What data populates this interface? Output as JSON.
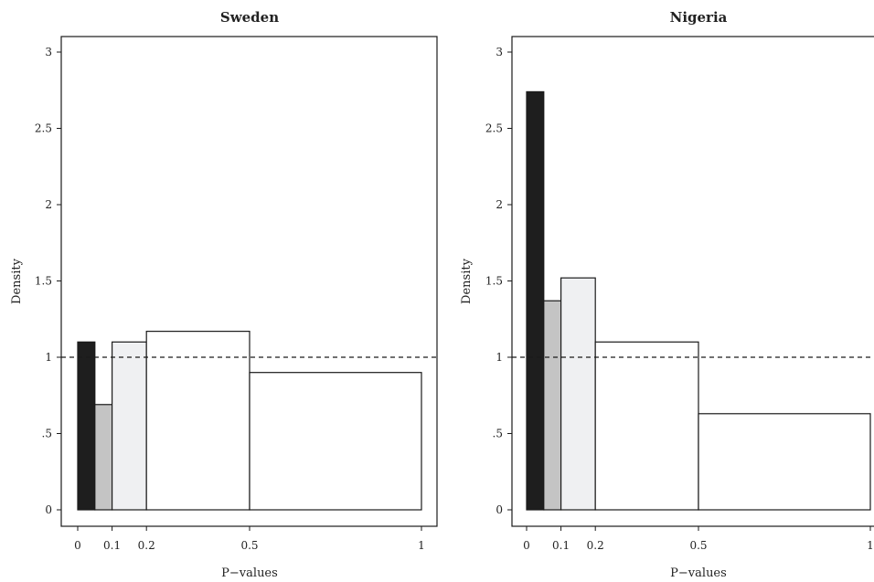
{
  "chart_data": [
    {
      "type": "bar",
      "title": "Sweden",
      "xlabel": "P−values",
      "ylabel": "Density",
      "xlim": [
        0,
        1
      ],
      "ylim": [
        0,
        3
      ],
      "x_ticks": [
        "0",
        "0.1",
        "0.2",
        "0.5",
        "1"
      ],
      "x_tick_values": [
        0,
        0.1,
        0.2,
        0.5,
        1
      ],
      "y_ticks": [
        "0",
        ".5",
        "1",
        "1.5",
        "2",
        "2.5",
        "3"
      ],
      "y_tick_values": [
        0,
        0.5,
        1,
        1.5,
        2,
        2.5,
        3
      ],
      "bins": [
        {
          "from": 0,
          "to": 0.05,
          "density": 1.1,
          "fill": "#1e1e1e"
        },
        {
          "from": 0.05,
          "to": 0.1,
          "density": 0.69,
          "fill": "#c4c4c4"
        },
        {
          "from": 0.1,
          "to": 0.2,
          "density": 1.1,
          "fill": "#eff0f2"
        },
        {
          "from": 0.2,
          "to": 0.5,
          "density": 1.17,
          "fill": "#ffffff"
        },
        {
          "from": 0.5,
          "to": 1,
          "density": 0.9,
          "fill": "#ffffff"
        }
      ],
      "reference_line": {
        "y": 1,
        "style": "dashed"
      }
    },
    {
      "type": "bar",
      "title": "Nigeria",
      "xlabel": "P−values",
      "ylabel": "Density",
      "xlim": [
        0,
        1
      ],
      "ylim": [
        0,
        3
      ],
      "x_ticks": [
        "0",
        "0.1",
        "0.2",
        "0.5",
        "1"
      ],
      "x_tick_values": [
        0,
        0.1,
        0.2,
        0.5,
        1
      ],
      "y_ticks": [
        "0",
        ".5",
        "1",
        "1.5",
        "2",
        "2.5",
        "3"
      ],
      "y_tick_values": [
        0,
        0.5,
        1,
        1.5,
        2,
        2.5,
        3
      ],
      "bins": [
        {
          "from": 0,
          "to": 0.05,
          "density": 2.74,
          "fill": "#1e1e1e"
        },
        {
          "from": 0.05,
          "to": 0.1,
          "density": 1.37,
          "fill": "#c4c4c4"
        },
        {
          "from": 0.1,
          "to": 0.2,
          "density": 1.52,
          "fill": "#eff0f2"
        },
        {
          "from": 0.2,
          "to": 0.5,
          "density": 1.1,
          "fill": "#ffffff"
        },
        {
          "from": 0.5,
          "to": 1,
          "density": 0.63,
          "fill": "#ffffff"
        }
      ],
      "reference_line": {
        "y": 1,
        "style": "dashed"
      }
    }
  ],
  "colors": {
    "frame": "#1a1a1a",
    "bar_stroke": "#1a1a1a",
    "reference_line": "#1a1a1a",
    "background": "#ffffff"
  }
}
